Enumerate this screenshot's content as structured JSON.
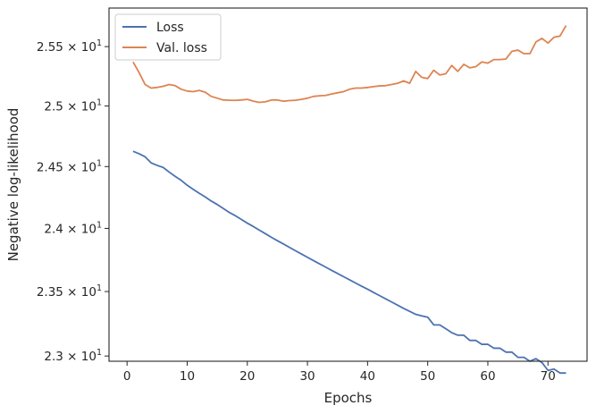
{
  "chart_data": {
    "type": "line",
    "xlabel": "Epochs",
    "ylabel": "Negative log-likelihood",
    "xlim": [
      -3,
      76.5
    ],
    "ylim": [
      22.96,
      25.83
    ],
    "log_scale_y": true,
    "grid": false,
    "legend_placement": "top-left",
    "x_ticks": [
      {
        "value": 0,
        "label": "0"
      },
      {
        "value": 10,
        "label": "10"
      },
      {
        "value": 20,
        "label": "20"
      },
      {
        "value": 30,
        "label": "30"
      },
      {
        "value": 40,
        "label": "40"
      },
      {
        "value": 50,
        "label": "50"
      },
      {
        "value": 60,
        "label": "60"
      },
      {
        "value": 70,
        "label": "70"
      }
    ],
    "y_ticks": [
      {
        "value": 23.0,
        "mantissa": "2.3"
      },
      {
        "value": 23.5,
        "mantissa": "2.35"
      },
      {
        "value": 24.0,
        "mantissa": "2.4"
      },
      {
        "value": 24.5,
        "mantissa": "2.45"
      },
      {
        "value": 25.0,
        "mantissa": "2.5"
      },
      {
        "value": 25.5,
        "mantissa": "2.55"
      }
    ],
    "y_tick_multiplier": "× 10",
    "y_tick_exponent": "1",
    "x": [
      1,
      2,
      3,
      4,
      5,
      6,
      7,
      8,
      9,
      10,
      11,
      12,
      13,
      14,
      15,
      16,
      17,
      18,
      19,
      20,
      21,
      22,
      23,
      24,
      25,
      26,
      27,
      28,
      29,
      30,
      31,
      32,
      33,
      34,
      35,
      36,
      37,
      38,
      39,
      40,
      41,
      42,
      43,
      44,
      45,
      46,
      47,
      48,
      49,
      50,
      51,
      52,
      53,
      54,
      55,
      56,
      57,
      58,
      59,
      60,
      61,
      62,
      63,
      64,
      65,
      66,
      67,
      68,
      69,
      70,
      71,
      72,
      73
    ],
    "series": [
      {
        "name": "Loss",
        "color": "#4c72b0",
        "values": [
          24.625,
          24.605,
          24.58,
          24.53,
          24.51,
          24.493,
          24.455,
          24.42,
          24.388,
          24.348,
          24.315,
          24.283,
          24.253,
          24.22,
          24.192,
          24.16,
          24.128,
          24.102,
          24.072,
          24.042,
          24.015,
          23.986,
          23.958,
          23.929,
          23.902,
          23.876,
          23.849,
          23.822,
          23.796,
          23.77,
          23.744,
          23.718,
          23.693,
          23.667,
          23.642,
          23.617,
          23.592,
          23.567,
          23.542,
          23.518,
          23.493,
          23.468,
          23.443,
          23.418,
          23.393,
          23.368,
          23.345,
          23.322,
          23.31,
          23.3,
          23.24,
          23.24,
          23.21,
          23.18,
          23.16,
          23.16,
          23.12,
          23.12,
          23.09,
          23.09,
          23.06,
          23.06,
          23.03,
          23.03,
          22.99,
          22.99,
          22.96,
          22.98,
          22.95,
          22.89,
          22.9,
          22.87,
          22.87
        ]
      },
      {
        "name": "Val. loss",
        "color": "#dd8452",
        "values": [
          25.37,
          25.28,
          25.18,
          25.15,
          25.155,
          25.165,
          25.18,
          25.17,
          25.14,
          25.125,
          25.12,
          25.13,
          25.115,
          25.08,
          25.065,
          25.05,
          25.048,
          25.047,
          25.05,
          25.055,
          25.04,
          25.03,
          25.035,
          25.05,
          25.05,
          25.04,
          25.045,
          25.048,
          25.055,
          25.065,
          25.08,
          25.085,
          25.088,
          25.1,
          25.11,
          25.12,
          25.14,
          25.15,
          25.15,
          25.155,
          25.162,
          25.168,
          25.17,
          25.18,
          25.19,
          25.21,
          25.19,
          25.29,
          25.24,
          25.23,
          25.3,
          25.26,
          25.27,
          25.34,
          25.29,
          25.35,
          25.32,
          25.33,
          25.37,
          25.36,
          25.39,
          25.39,
          25.395,
          25.46,
          25.47,
          25.44,
          25.44,
          25.54,
          25.57,
          25.53,
          25.58,
          25.59,
          25.68
        ]
      }
    ]
  }
}
